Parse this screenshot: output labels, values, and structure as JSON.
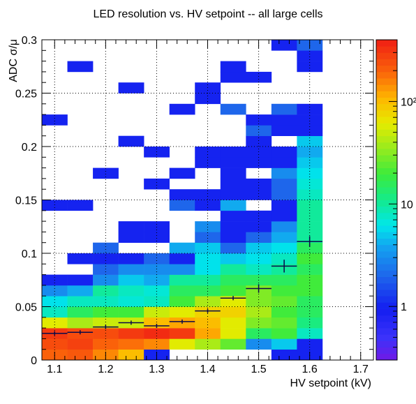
{
  "chart_data": {
    "type": "heatmap",
    "title": "LED resolution vs. HV setpoint -- all large cells",
    "xlabel": "HV setpoint (kV)",
    "ylabel": "ADC σ/μ",
    "xlim": [
      1.075,
      1.725
    ],
    "ylim": [
      0,
      0.3
    ],
    "x_bin_width": 0.05,
    "y_bin_width": 0.01,
    "x_ticks": [
      1.1,
      1.2,
      1.3,
      1.4,
      1.5,
      1.6,
      1.7
    ],
    "x_tick_labels": [
      "1.1",
      "1.2",
      "1.3",
      "1.4",
      "1.5",
      "1.6",
      "1.7"
    ],
    "y_ticks": [
      0,
      0.05,
      0.1,
      0.15,
      0.2,
      0.25,
      0.3
    ],
    "y_tick_labels": [
      "0",
      "0.05",
      "0.1",
      "0.15",
      "0.2",
      "0.25",
      "0.3"
    ],
    "grid": true,
    "z_scale": "log",
    "zlim": [
      0.3,
      400
    ],
    "z_ticks": [
      1,
      10,
      100
    ],
    "z_tick_labels": [
      "1",
      "10",
      "10²"
    ],
    "cell_columns": [
      "x_center",
      "y_center",
      "count"
    ],
    "cells": [
      [
        1.1,
        0.005,
        200
      ],
      [
        1.1,
        0.015,
        250
      ],
      [
        1.1,
        0.025,
        300
      ],
      [
        1.1,
        0.035,
        60
      ],
      [
        1.1,
        0.045,
        8
      ],
      [
        1.1,
        0.055,
        6
      ],
      [
        1.1,
        0.065,
        3
      ],
      [
        1.1,
        0.075,
        1
      ],
      [
        1.1,
        0.145,
        1
      ],
      [
        1.1,
        0.225,
        1
      ],
      [
        1.15,
        0.005,
        220
      ],
      [
        1.15,
        0.015,
        280
      ],
      [
        1.15,
        0.025,
        250
      ],
      [
        1.15,
        0.035,
        40
      ],
      [
        1.15,
        0.045,
        15
      ],
      [
        1.15,
        0.055,
        8
      ],
      [
        1.15,
        0.065,
        4
      ],
      [
        1.15,
        0.075,
        1
      ],
      [
        1.15,
        0.095,
        1
      ],
      [
        1.15,
        0.145,
        1
      ],
      [
        1.15,
        0.275,
        1
      ],
      [
        1.2,
        0.005,
        150
      ],
      [
        1.2,
        0.015,
        200
      ],
      [
        1.2,
        0.025,
        250
      ],
      [
        1.2,
        0.035,
        50
      ],
      [
        1.2,
        0.045,
        20
      ],
      [
        1.2,
        0.055,
        8
      ],
      [
        1.2,
        0.065,
        10
      ],
      [
        1.2,
        0.075,
        3
      ],
      [
        1.2,
        0.085,
        2
      ],
      [
        1.2,
        0.095,
        1
      ],
      [
        1.2,
        0.105,
        2
      ],
      [
        1.2,
        0.175,
        1
      ],
      [
        1.25,
        0.005,
        100
      ],
      [
        1.25,
        0.015,
        180
      ],
      [
        1.25,
        0.025,
        300
      ],
      [
        1.25,
        0.035,
        50
      ],
      [
        1.25,
        0.045,
        20
      ],
      [
        1.25,
        0.055,
        7
      ],
      [
        1.25,
        0.065,
        8
      ],
      [
        1.25,
        0.075,
        5
      ],
      [
        1.25,
        0.085,
        3
      ],
      [
        1.25,
        0.095,
        1
      ],
      [
        1.25,
        0.115,
        1
      ],
      [
        1.25,
        0.125,
        1
      ],
      [
        1.25,
        0.205,
        1
      ],
      [
        1.25,
        0.255,
        1
      ],
      [
        1.3,
        0.005,
        1
      ],
      [
        1.3,
        0.015,
        150
      ],
      [
        1.3,
        0.025,
        350
      ],
      [
        1.3,
        0.035,
        100
      ],
      [
        1.3,
        0.045,
        50
      ],
      [
        1.3,
        0.055,
        8
      ],
      [
        1.3,
        0.065,
        7
      ],
      [
        1.3,
        0.075,
        4
      ],
      [
        1.3,
        0.085,
        3
      ],
      [
        1.3,
        0.095,
        2
      ],
      [
        1.3,
        0.115,
        1
      ],
      [
        1.3,
        0.125,
        1
      ],
      [
        1.3,
        0.165,
        1
      ],
      [
        1.3,
        0.195,
        1
      ],
      [
        1.35,
        0.015,
        60
      ],
      [
        1.35,
        0.025,
        300
      ],
      [
        1.35,
        0.035,
        120
      ],
      [
        1.35,
        0.045,
        60
      ],
      [
        1.35,
        0.055,
        20
      ],
      [
        1.35,
        0.065,
        15
      ],
      [
        1.35,
        0.075,
        10
      ],
      [
        1.35,
        0.085,
        3
      ],
      [
        1.35,
        0.095,
        1
      ],
      [
        1.35,
        0.105,
        4
      ],
      [
        1.35,
        0.145,
        2
      ],
      [
        1.35,
        0.155,
        1
      ],
      [
        1.35,
        0.175,
        1
      ],
      [
        1.35,
        0.235,
        1
      ],
      [
        1.4,
        0.015,
        40
      ],
      [
        1.4,
        0.025,
        120
      ],
      [
        1.4,
        0.035,
        100
      ],
      [
        1.4,
        0.045,
        80
      ],
      [
        1.4,
        0.055,
        40
      ],
      [
        1.4,
        0.065,
        15
      ],
      [
        1.4,
        0.075,
        10
      ],
      [
        1.4,
        0.085,
        6
      ],
      [
        1.4,
        0.095,
        6
      ],
      [
        1.4,
        0.105,
        5
      ],
      [
        1.4,
        0.115,
        2
      ],
      [
        1.4,
        0.125,
        3
      ],
      [
        1.4,
        0.145,
        1
      ],
      [
        1.4,
        0.155,
        1
      ],
      [
        1.4,
        0.185,
        1
      ],
      [
        1.4,
        0.195,
        1
      ],
      [
        1.4,
        0.245,
        1
      ],
      [
        1.4,
        0.255,
        1
      ],
      [
        1.45,
        0.015,
        25
      ],
      [
        1.45,
        0.025,
        60
      ],
      [
        1.45,
        0.035,
        60
      ],
      [
        1.45,
        0.045,
        80
      ],
      [
        1.45,
        0.055,
        60
      ],
      [
        1.45,
        0.065,
        20
      ],
      [
        1.45,
        0.075,
        15
      ],
      [
        1.45,
        0.085,
        10
      ],
      [
        1.45,
        0.095,
        5
      ],
      [
        1.45,
        0.105,
        2
      ],
      [
        1.45,
        0.115,
        1
      ],
      [
        1.45,
        0.125,
        1
      ],
      [
        1.45,
        0.135,
        1
      ],
      [
        1.45,
        0.145,
        4
      ],
      [
        1.45,
        0.155,
        1
      ],
      [
        1.45,
        0.165,
        1
      ],
      [
        1.45,
        0.175,
        1
      ],
      [
        1.45,
        0.185,
        1
      ],
      [
        1.45,
        0.195,
        1
      ],
      [
        1.45,
        0.235,
        2
      ],
      [
        1.45,
        0.265,
        1
      ],
      [
        1.45,
        0.275,
        1
      ],
      [
        1.5,
        0.015,
        3
      ],
      [
        1.5,
        0.025,
        15
      ],
      [
        1.5,
        0.035,
        30
      ],
      [
        1.5,
        0.045,
        40
      ],
      [
        1.5,
        0.055,
        30
      ],
      [
        1.5,
        0.065,
        30
      ],
      [
        1.5,
        0.075,
        15
      ],
      [
        1.5,
        0.085,
        8
      ],
      [
        1.5,
        0.095,
        6
      ],
      [
        1.5,
        0.105,
        5
      ],
      [
        1.5,
        0.115,
        2
      ],
      [
        1.5,
        0.125,
        1
      ],
      [
        1.5,
        0.135,
        1
      ],
      [
        1.5,
        0.155,
        1
      ],
      [
        1.5,
        0.165,
        1
      ],
      [
        1.5,
        0.185,
        1
      ],
      [
        1.5,
        0.195,
        1
      ],
      [
        1.5,
        0.205,
        1
      ],
      [
        1.5,
        0.215,
        2
      ],
      [
        1.5,
        0.225,
        1
      ],
      [
        1.5,
        0.265,
        1
      ],
      [
        1.55,
        0.005,
        1
      ],
      [
        1.55,
        0.015,
        5
      ],
      [
        1.55,
        0.025,
        20
      ],
      [
        1.55,
        0.035,
        25
      ],
      [
        1.55,
        0.045,
        20
      ],
      [
        1.55,
        0.055,
        25
      ],
      [
        1.55,
        0.065,
        20
      ],
      [
        1.55,
        0.075,
        15
      ],
      [
        1.55,
        0.085,
        10
      ],
      [
        1.55,
        0.095,
        8
      ],
      [
        1.55,
        0.105,
        6
      ],
      [
        1.55,
        0.115,
        4
      ],
      [
        1.55,
        0.125,
        3
      ],
      [
        1.55,
        0.135,
        1
      ],
      [
        1.55,
        0.145,
        1
      ],
      [
        1.55,
        0.155,
        2
      ],
      [
        1.55,
        0.165,
        2
      ],
      [
        1.55,
        0.175,
        3
      ],
      [
        1.55,
        0.185,
        1
      ],
      [
        1.55,
        0.195,
        1
      ],
      [
        1.55,
        0.215,
        1
      ],
      [
        1.55,
        0.225,
        1
      ],
      [
        1.55,
        0.235,
        2
      ],
      [
        1.55,
        0.295,
        1
      ],
      [
        1.6,
        0.005,
        1
      ],
      [
        1.6,
        0.015,
        1
      ],
      [
        1.6,
        0.025,
        8
      ],
      [
        1.6,
        0.035,
        12
      ],
      [
        1.6,
        0.045,
        15
      ],
      [
        1.6,
        0.055,
        15
      ],
      [
        1.6,
        0.065,
        20
      ],
      [
        1.6,
        0.075,
        20
      ],
      [
        1.6,
        0.085,
        15
      ],
      [
        1.6,
        0.095,
        20
      ],
      [
        1.6,
        0.105,
        15
      ],
      [
        1.6,
        0.115,
        10
      ],
      [
        1.6,
        0.125,
        10
      ],
      [
        1.6,
        0.135,
        10
      ],
      [
        1.6,
        0.145,
        10
      ],
      [
        1.6,
        0.155,
        8
      ],
      [
        1.6,
        0.165,
        7
      ],
      [
        1.6,
        0.175,
        6
      ],
      [
        1.6,
        0.185,
        5
      ],
      [
        1.6,
        0.195,
        4
      ],
      [
        1.6,
        0.205,
        5
      ],
      [
        1.6,
        0.215,
        1
      ],
      [
        1.6,
        0.225,
        1
      ],
      [
        1.6,
        0.235,
        1
      ],
      [
        1.6,
        0.275,
        1
      ],
      [
        1.6,
        0.285,
        1
      ],
      [
        1.6,
        0.295,
        2
      ]
    ],
    "profile_columns": [
      "x",
      "y",
      "y_error"
    ],
    "profile": [
      [
        1.1,
        0.025,
        0.0
      ],
      [
        1.15,
        0.026,
        0.0
      ],
      [
        1.2,
        0.031,
        0.001
      ],
      [
        1.25,
        0.035,
        0.001
      ],
      [
        1.3,
        0.032,
        0.001
      ],
      [
        1.35,
        0.036,
        0.001
      ],
      [
        1.4,
        0.046,
        0.0015
      ],
      [
        1.45,
        0.058,
        0.002
      ],
      [
        1.5,
        0.067,
        0.004
      ],
      [
        1.55,
        0.088,
        0.006
      ],
      [
        1.6,
        0.111,
        0.005
      ]
    ]
  }
}
